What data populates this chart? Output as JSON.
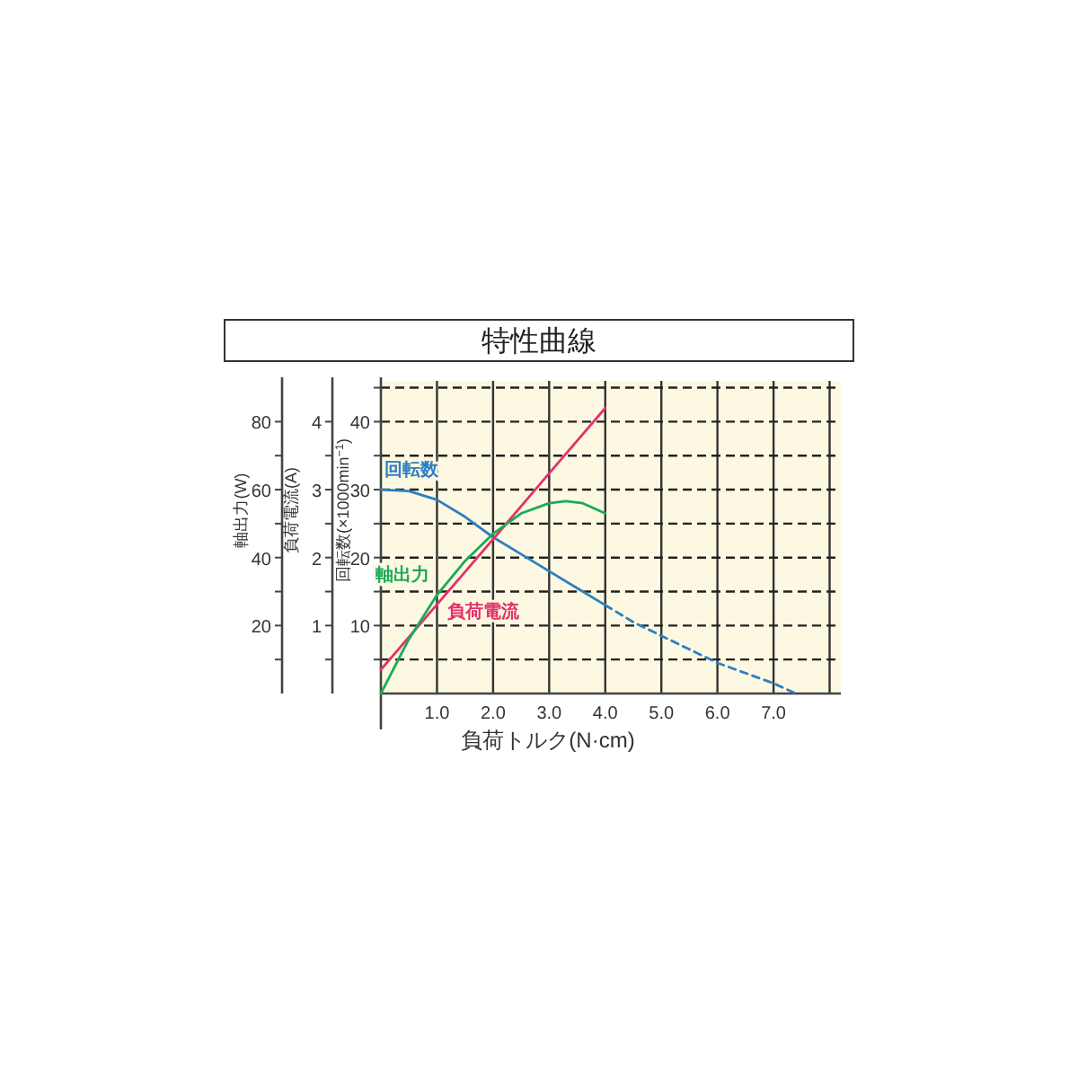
{
  "chart_data": {
    "type": "line",
    "title": "特性曲線",
    "xlabel": "負荷トルク(N·cm)",
    "ylabel": "回転数(×1000min$^{−1}$)",
    "y2label": "負荷電流(A)",
    "y3label": "軸出力(W)",
    "xlim": [
      0,
      8.2
    ],
    "xticks": [
      {
        "value": 1,
        "label": "1.0"
      },
      {
        "value": 2,
        "label": "2.0"
      },
      {
        "value": 3,
        "label": "3.0"
      },
      {
        "value": 4,
        "label": "4.0"
      },
      {
        "value": 5,
        "label": "5.0"
      },
      {
        "value": 6,
        "label": "6.0"
      },
      {
        "value": 7,
        "label": "7.0"
      },
      {
        "value": 8,
        "label": null
      }
    ],
    "ylim": [
      0,
      46
    ],
    "yticks": [
      {
        "value": 5,
        "label": null
      },
      10,
      {
        "value": 15,
        "label": null
      },
      20,
      {
        "value": 25,
        "label": null
      },
      30,
      {
        "value": 35,
        "label": null
      },
      40,
      {
        "value": 45,
        "label": null
      }
    ],
    "y2lim": [
      0,
      4.6
    ],
    "y2ticks": [
      {
        "value": 0.5,
        "label": null
      },
      1,
      {
        "value": 1.5,
        "label": null
      },
      2,
      {
        "value": 2.5,
        "label": null
      },
      3,
      {
        "value": 3.5,
        "label": null
      },
      4
    ],
    "y3lim": [
      0,
      92
    ],
    "y3ticks": [
      {
        "value": 10,
        "label": null
      },
      20,
      {
        "value": 30,
        "label": null
      },
      40,
      {
        "value": 50,
        "label": null
      },
      60,
      {
        "value": 70,
        "label": null
      },
      80
    ],
    "grid": true,
    "series": [
      {
        "name": "回転数",
        "color": "#2e7fc0",
        "axis": "y",
        "line_style": "solid",
        "x": [
          0,
          0.5,
          1.0,
          1.5,
          2.0,
          2.5,
          3.0,
          3.5,
          4.0
        ],
        "values": [
          30,
          29.8,
          28.5,
          26,
          23,
          20.5,
          18,
          15.5,
          13
        ]
      },
      {
        "color": "#2e7fc0",
        "axis": "y",
        "line_style": "dashed",
        "x": [
          4.0,
          4.5,
          5.0,
          5.5,
          6.0,
          6.5,
          7.0,
          7.4
        ],
        "values": [
          13,
          10.5,
          8.5,
          6.5,
          4.5,
          3,
          1.5,
          0
        ]
      },
      {
        "name": "負荷電流",
        "color": "#e2336b",
        "axis": "y2",
        "line_style": "solid",
        "x": [
          0,
          1.0,
          2.0,
          3.0,
          4.0
        ],
        "values": [
          0.35,
          1.31,
          2.27,
          3.24,
          4.2
        ]
      },
      {
        "name": "軸出力",
        "color": "#1aaa5a",
        "axis": "y3",
        "line_style": "solid",
        "x": [
          0,
          0.5,
          1.0,
          1.5,
          2.0,
          2.5,
          3.0,
          3.3,
          3.6,
          4.0
        ],
        "values": [
          0,
          16,
          29,
          39,
          47,
          53,
          56,
          56.6,
          56,
          53
        ]
      }
    ]
  }
}
